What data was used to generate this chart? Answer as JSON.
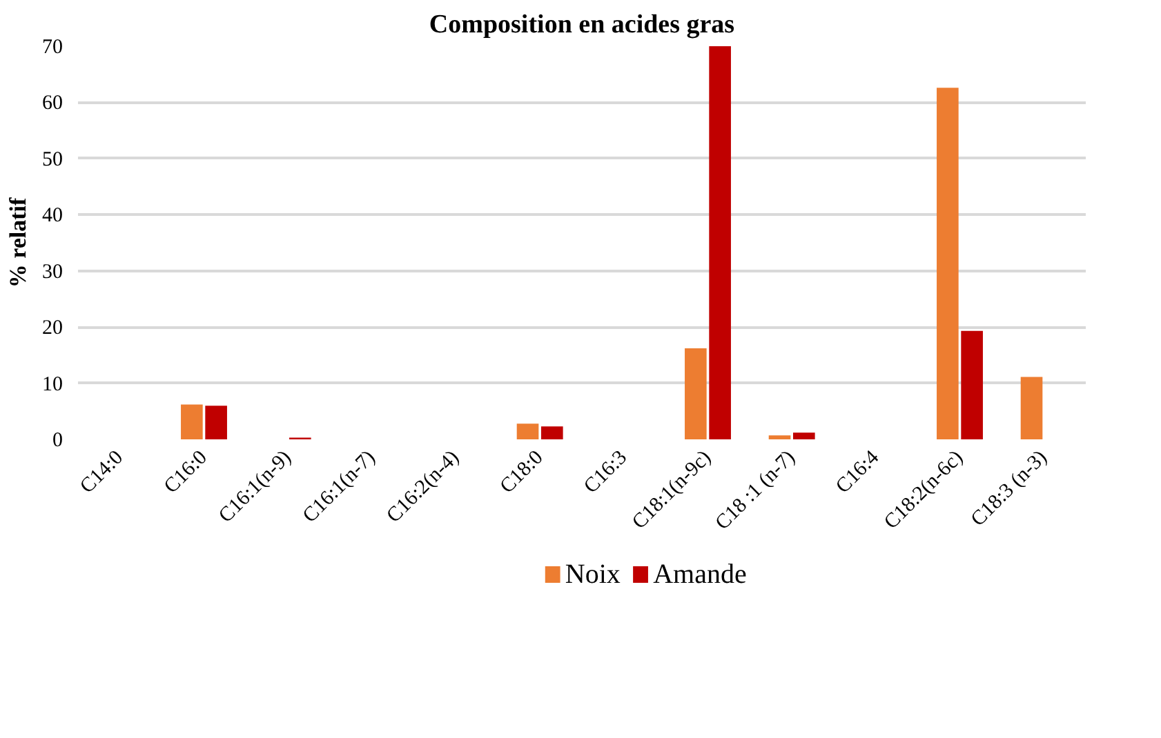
{
  "chart_data": {
    "type": "bar",
    "title": "Composition en acides gras",
    "ylabel": "% relatif",
    "categories": [
      "C14:0",
      "C16:0",
      "C16:1(n-9)",
      "C16:1(n-7)",
      "C16:2(n-4)",
      "C18:0",
      "C16:3",
      "C18:1(n-9c)",
      "C18 :1 (n-7)",
      "C16:4",
      "C18:2(n-6c)",
      "C18:3 (n-3)"
    ],
    "series": [
      {
        "name": "Noix",
        "color": "#ed7d31",
        "values": [
          0,
          6.2,
          0,
          0,
          0,
          2.8,
          0,
          16.2,
          0.7,
          0,
          62.6,
          11.1
        ]
      },
      {
        "name": "Amande",
        "color": "#c00000",
        "values": [
          0,
          6.0,
          0.3,
          0,
          0,
          2.3,
          0,
          70,
          1.2,
          0,
          19.3,
          0
        ]
      }
    ],
    "ylim": [
      0,
      70
    ],
    "yticks": [
      0,
      10,
      20,
      30,
      40,
      50,
      60,
      70
    ],
    "grid": "y",
    "legend": "bottom"
  }
}
